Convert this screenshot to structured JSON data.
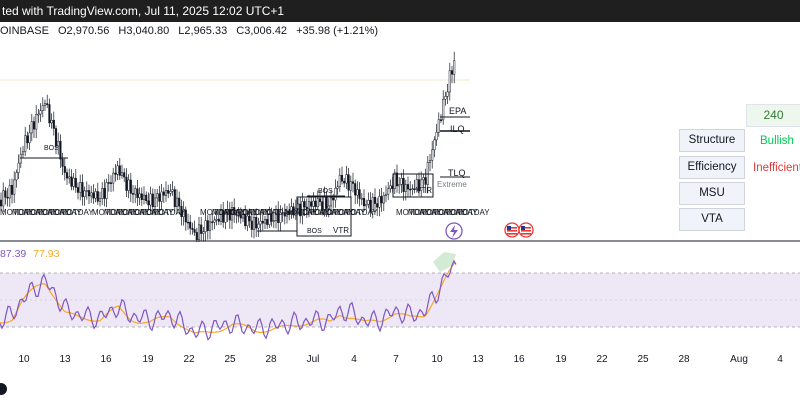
{
  "topbar": {
    "text": "ted with TradingView.com, Jul 11, 2025 12:02 UTC+1"
  },
  "ohlc": {
    "exchange": "OINBASE",
    "o_label": "O",
    "o": "2,970.56",
    "h_label": "H",
    "h": "3,040.80",
    "l_label": "L",
    "l": "2,965.33",
    "c_label": "C",
    "c": "3,006.42",
    "change": "+35.98 (+1.21%)"
  },
  "annotations": {
    "bos": "BOS",
    "vtr": "VTR",
    "epa": "EPA",
    "ilq": "ILQ",
    "tlq": "TLQ",
    "extreme": "Extreme",
    "motday": "MOTDAY"
  },
  "side_panel": {
    "top_value": "240",
    "rows": [
      {
        "label": "Structure",
        "value": "Bullish",
        "value_color": "#00c853"
      },
      {
        "label": "Efficiency",
        "value": "Inefficient",
        "value_color": "#e53935"
      },
      {
        "label": "MSU",
        "value": ""
      },
      {
        "label": "VTA",
        "value": ""
      }
    ]
  },
  "rsi": {
    "value1": "87.39",
    "value2": "77.93",
    "color1": "#7e57c2",
    "color2": "#f9a825"
  },
  "x_axis": {
    "ticks": [
      {
        "label": "10",
        "x": 24
      },
      {
        "label": "13",
        "x": 65
      },
      {
        "label": "16",
        "x": 106
      },
      {
        "label": "19",
        "x": 148
      },
      {
        "label": "22",
        "x": 189
      },
      {
        "label": "25",
        "x": 230
      },
      {
        "label": "28",
        "x": 271
      },
      {
        "label": "Jul",
        "x": 313
      },
      {
        "label": "4",
        "x": 354
      },
      {
        "label": "7",
        "x": 396
      },
      {
        "label": "10",
        "x": 437
      },
      {
        "label": "13",
        "x": 478
      },
      {
        "label": "16",
        "x": 519
      },
      {
        "label": "19",
        "x": 561
      },
      {
        "label": "22",
        "x": 602
      },
      {
        "label": "25",
        "x": 643
      },
      {
        "label": "28",
        "x": 684
      },
      {
        "label": "Aug",
        "x": 739
      },
      {
        "label": "4",
        "x": 780
      }
    ]
  },
  "colors": {
    "up": "#26a69a",
    "down": "#ef5350",
    "candle": "#131722",
    "rsi_band": "#7e57c2"
  },
  "icons": [
    "lightning-icon",
    "us-flag-icon",
    "us-flag-icon"
  ]
}
